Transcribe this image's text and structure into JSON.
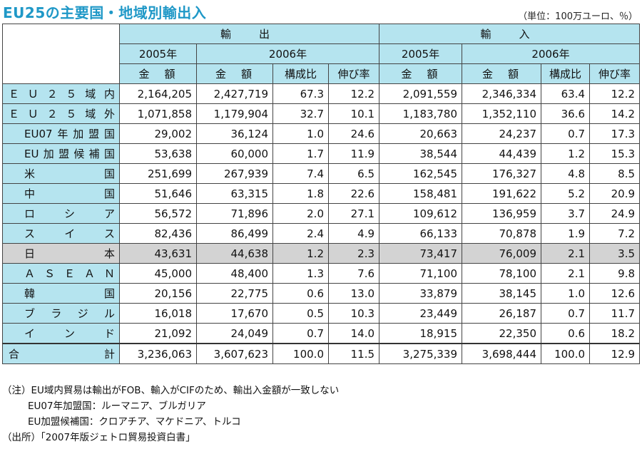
{
  "title": "EU25の主要国・地域別輸出入",
  "unit": "（単位：100万ユーロ、％）",
  "header": {
    "export": "輸　出",
    "import": "輸　入",
    "year2005": "2005年",
    "year2006": "2006年",
    "amount": "金　額",
    "share": "構成比",
    "growth": "伸び率"
  },
  "rows": [
    {
      "label": "ＥＵ２５域内",
      "indent": false,
      "export_2005": "2,164,205",
      "export_2006": "2,427,719",
      "export_share": "67.3",
      "export_growth": "12.2",
      "import_2005": "2,091,559",
      "import_2006": "2,346,334",
      "import_share": "63.4",
      "import_growth": "12.2"
    },
    {
      "label": "ＥＵ２５域外",
      "indent": false,
      "export_2005": "1,071,858",
      "export_2006": "1,179,904",
      "export_share": "32.7",
      "export_growth": "10.1",
      "import_2005": "1,183,780",
      "import_2006": "1,352,110",
      "import_share": "36.6",
      "import_growth": "14.2"
    },
    {
      "label": "EU07年加盟国",
      "indent": true,
      "export_2005": "29,002",
      "export_2006": "36,124",
      "export_share": "1.0",
      "export_growth": "24.6",
      "import_2005": "20,663",
      "import_2006": "24,237",
      "import_share": "0.7",
      "import_growth": "17.3"
    },
    {
      "label": "EU加盟候補国",
      "indent": true,
      "export_2005": "53,638",
      "export_2006": "60,000",
      "export_share": "1.7",
      "export_growth": "11.9",
      "import_2005": "38,544",
      "import_2006": "44,439",
      "import_share": "1.2",
      "import_growth": "15.3"
    },
    {
      "label": "米国",
      "indent": true,
      "export_2005": "251,699",
      "export_2006": "267,939",
      "export_share": "7.4",
      "export_growth": "6.5",
      "import_2005": "162,545",
      "import_2006": "176,327",
      "import_share": "4.8",
      "import_growth": "8.5"
    },
    {
      "label": "中国",
      "indent": true,
      "export_2005": "51,646",
      "export_2006": "63,315",
      "export_share": "1.8",
      "export_growth": "22.6",
      "import_2005": "158,481",
      "import_2006": "191,622",
      "import_share": "5.2",
      "import_growth": "20.9"
    },
    {
      "label": "ロシア",
      "indent": true,
      "export_2005": "56,572",
      "export_2006": "71,896",
      "export_share": "2.0",
      "export_growth": "27.1",
      "import_2005": "109,612",
      "import_2006": "136,959",
      "import_share": "3.7",
      "import_growth": "24.9"
    },
    {
      "label": "スイス",
      "indent": true,
      "export_2005": "82,436",
      "export_2006": "86,499",
      "export_share": "2.4",
      "export_growth": "4.9",
      "import_2005": "66,133",
      "import_2006": "70,878",
      "import_share": "1.9",
      "import_growth": "7.2"
    },
    {
      "label": "日本",
      "indent": true,
      "highlight": true,
      "export_2005": "43,631",
      "export_2006": "44,638",
      "export_share": "1.2",
      "export_growth": "2.3",
      "import_2005": "73,417",
      "import_2006": "76,009",
      "import_share": "2.1",
      "import_growth": "3.5"
    },
    {
      "label": "ＡＳＥＡＮ",
      "indent": true,
      "export_2005": "45,000",
      "export_2006": "48,400",
      "export_share": "1.3",
      "export_growth": "7.6",
      "import_2005": "71,100",
      "import_2006": "78,100",
      "import_share": "2.1",
      "import_growth": "9.8"
    },
    {
      "label": "韓国",
      "indent": true,
      "export_2005": "20,156",
      "export_2006": "22,775",
      "export_share": "0.6",
      "export_growth": "13.0",
      "import_2005": "33,879",
      "import_2006": "38,145",
      "import_share": "1.0",
      "import_growth": "12.6"
    },
    {
      "label": "ブラジル",
      "indent": true,
      "export_2005": "16,018",
      "export_2006": "17,670",
      "export_share": "0.5",
      "export_growth": "10.3",
      "import_2005": "23,449",
      "import_2006": "26,187",
      "import_share": "0.7",
      "import_growth": "11.7"
    },
    {
      "label": "インド",
      "indent": true,
      "export_2005": "21,092",
      "export_2006": "24,049",
      "export_share": "0.7",
      "export_growth": "14.0",
      "import_2005": "18,915",
      "import_2006": "22,350",
      "import_share": "0.6",
      "import_growth": "18.2"
    },
    {
      "label": "合計",
      "indent": false,
      "total": true,
      "export_2005": "3,236,063",
      "export_2006": "3,607,623",
      "export_share": "100.0",
      "export_growth": "11.5",
      "import_2005": "3,275,339",
      "import_2006": "3,698,444",
      "import_share": "100.0",
      "import_growth": "12.9"
    }
  ],
  "notes": [
    "（注）EU域内貿易は輸出がFOB、輸入がCIFのため、輸出入金額が一致しない",
    "EU07年加盟国：ルーマニア、ブルガリア",
    "EU加盟候補国：クロアチア、マケドニア、トルコ",
    "（出所）「2007年版ジェトロ貿易投資白書」"
  ],
  "colors": {
    "title": "#1f98c7",
    "header_bg": "#b5e4ef",
    "highlight_row": "#d3d3d3"
  }
}
